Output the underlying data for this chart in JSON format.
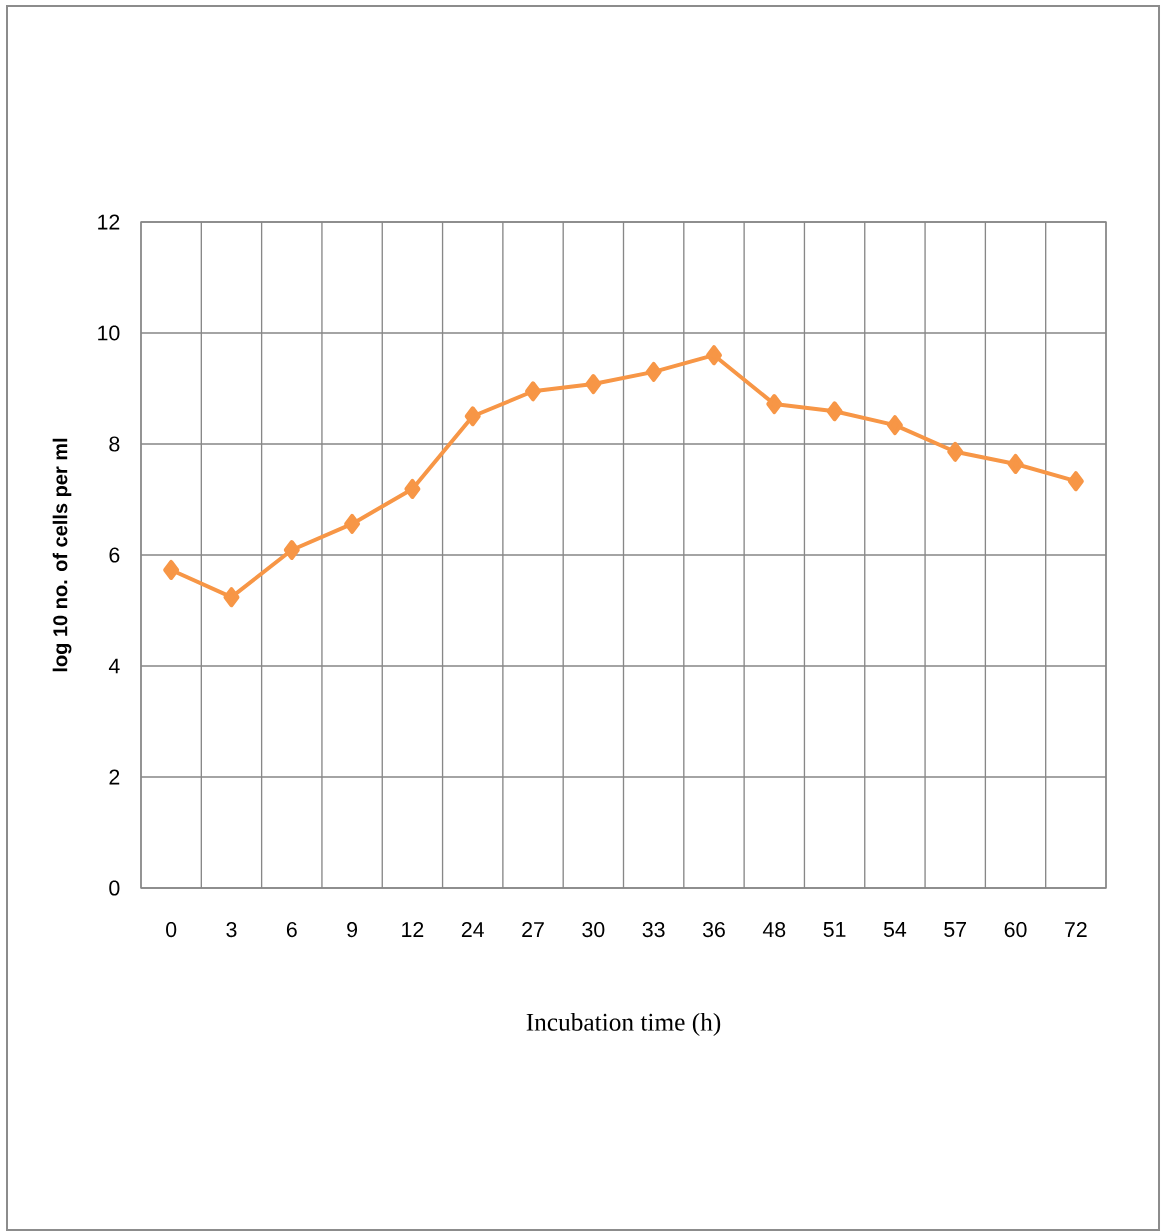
{
  "chart_data": {
    "type": "line",
    "xlabel": "Incubation time (h)",
    "ylabel": "log 10 no. of cells per ml",
    "categories": [
      "0",
      "3",
      "6",
      "9",
      "12",
      "24",
      "27",
      "30",
      "33",
      "36",
      "48",
      "51",
      "54",
      "57",
      "60",
      "72"
    ],
    "series": [
      {
        "color": "#f79646",
        "values": [
          5.73,
          5.24,
          6.09,
          6.56,
          7.19,
          8.5,
          8.95,
          9.08,
          9.3,
          9.6,
          8.72,
          8.59,
          8.34,
          7.86,
          7.64,
          7.33
        ]
      }
    ],
    "ylim": [
      0,
      12
    ],
    "yticks": [
      0,
      2,
      4,
      6,
      8,
      10,
      12
    ],
    "grid": true,
    "marker": "diamond",
    "line_style": "solid"
  }
}
